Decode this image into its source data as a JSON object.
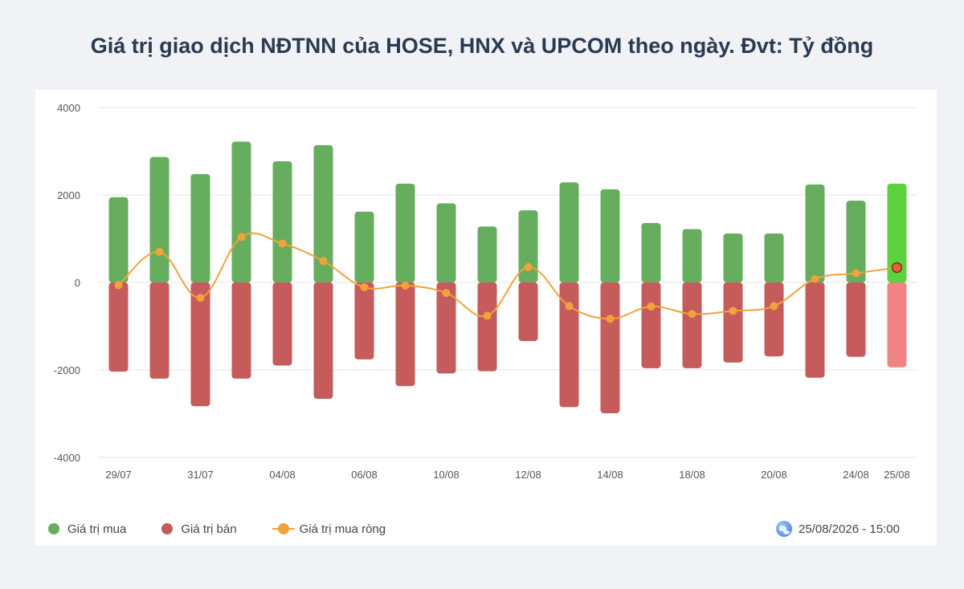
{
  "title": "Giá trị giao dịch NĐTNN của HOSE, HNX và UPCOM theo ngày. Đvt: Tỷ đồng",
  "colors": {
    "buy": "#66ad5d",
    "sell": "#c55b5b",
    "net": "#f0a33a",
    "buy_highlight": "#5dd23f",
    "sell_highlight": "#f08484"
  },
  "legend": {
    "buy": "Giá trị mua",
    "sell": "Giá trị bán",
    "net": "Giá trị mua ròng"
  },
  "timestamp": "25/08/2026 - 15:00",
  "chart_data": {
    "type": "bar",
    "title": "Giá trị giao dịch NĐTNN của HOSE, HNX và UPCOM theo ngày. Đvt: Tỷ đồng",
    "xlabel": "",
    "ylabel": "",
    "ylim": [
      -4000,
      4000
    ],
    "yticks": [
      4000,
      2000,
      0,
      -2000,
      -4000
    ],
    "x_tick_labels": [
      "29/07",
      "",
      "31/07",
      "",
      "04/08",
      "",
      "06/08",
      "",
      "10/08",
      "",
      "12/08",
      "",
      "14/08",
      "",
      "18/08",
      "",
      "20/08",
      "",
      "24/08",
      "25/08"
    ],
    "series": [
      {
        "name": "Giá trị mua",
        "type": "bar",
        "values": [
          1950,
          2870,
          2480,
          3220,
          2770,
          3140,
          1620,
          2260,
          1810,
          1280,
          1650,
          2290,
          2130,
          1360,
          1220,
          1120,
          1120,
          2240,
          1870,
          2260
        ]
      },
      {
        "name": "Giá trị bán",
        "type": "bar",
        "values": [
          -2040,
          -2200,
          -2830,
          -2200,
          -1900,
          -2660,
          -1760,
          -2370,
          -2080,
          -2030,
          -1340,
          -2850,
          -2990,
          -1960,
          -1960,
          -1830,
          -1690,
          -2180,
          -1700,
          -1940
        ]
      },
      {
        "name": "Giá trị mua ròng",
        "type": "line",
        "values": [
          -60,
          700,
          -350,
          1040,
          890,
          490,
          -110,
          -70,
          -240,
          -760,
          350,
          -540,
          -830,
          -550,
          -720,
          -650,
          -540,
          80,
          210,
          340
        ]
      }
    ],
    "grid": true,
    "legend_position": "bottom-left"
  }
}
